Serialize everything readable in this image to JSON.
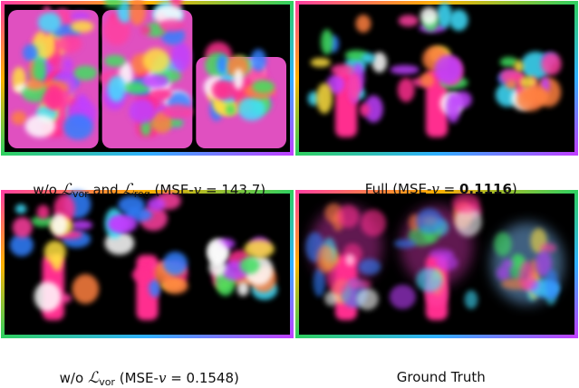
{
  "panels": [
    {
      "caption": [
        "w/o ",
        "ℒ",
        "vor",
        " and ",
        "ℒ",
        "reg",
        " (MSE-",
        "v",
        " = 143.7)"
      ]
    },
    {
      "caption": [
        "Full (MSE-",
        "v",
        " = ",
        "0.1116",
        ")"
      ]
    },
    {
      "caption": [
        "w/o ",
        "ℒ",
        "vor",
        " (MSE-",
        "v",
        " = 0.1548)"
      ]
    },
    {
      "caption": [
        "Ground Truth"
      ]
    }
  ]
}
